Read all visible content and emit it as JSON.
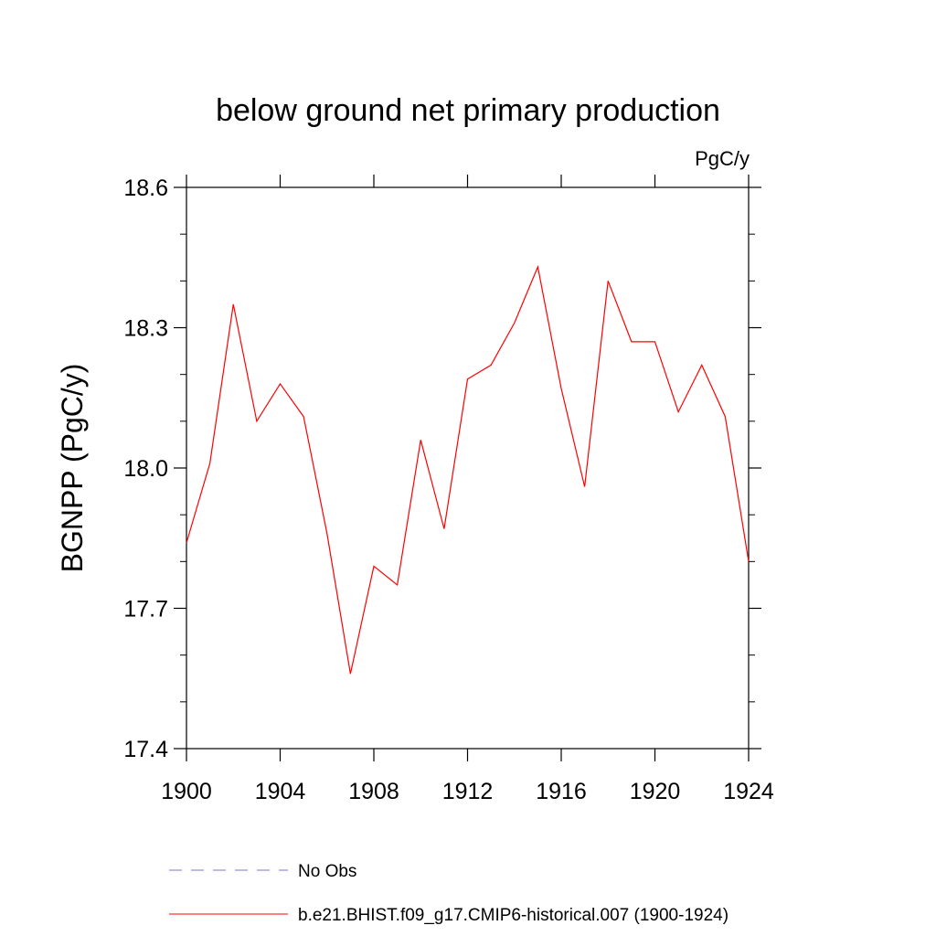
{
  "chart_data": {
    "type": "line",
    "title": "below ground net primary production",
    "units": "PgC/y",
    "ylabel": "BGNPP  (PgC/y)",
    "xlabel": "",
    "xlim": [
      1900,
      1924
    ],
    "ylim": [
      17.4,
      18.6
    ],
    "xticks": [
      1900,
      1904,
      1908,
      1912,
      1916,
      1920,
      1924
    ],
    "xtick_labels": [
      "1900",
      "1904",
      "1908",
      "1912",
      "1916",
      "1920",
      "1924"
    ],
    "yticks": [
      17.4,
      17.7,
      18.0,
      18.3,
      18.6
    ],
    "ytick_labels": [
      "17.4",
      "17.7",
      "18.0",
      "18.3",
      "18.6"
    ],
    "grid": false,
    "legend_position": "bottom",
    "series": [
      {
        "name": "b.e21.BHIST.f09_g17.CMIP6-historical.007 (1900-1924)",
        "color": "#ff0000",
        "style": "solid",
        "x": [
          1900,
          1901,
          1902,
          1903,
          1904,
          1905,
          1906,
          1907,
          1908,
          1909,
          1910,
          1911,
          1912,
          1913,
          1914,
          1915,
          1916,
          1917,
          1918,
          1919,
          1920,
          1921,
          1922,
          1923,
          1924
        ],
        "values": [
          17.84,
          18.01,
          18.35,
          18.1,
          18.18,
          18.11,
          17.86,
          17.56,
          17.79,
          17.75,
          18.06,
          17.87,
          18.19,
          18.22,
          18.31,
          18.43,
          18.17,
          17.96,
          18.4,
          18.27,
          18.27,
          18.12,
          18.22,
          18.11,
          17.8
        ]
      },
      {
        "name": "No Obs",
        "color": "#7777cc",
        "style": "dashed",
        "x": [],
        "values": []
      }
    ]
  }
}
